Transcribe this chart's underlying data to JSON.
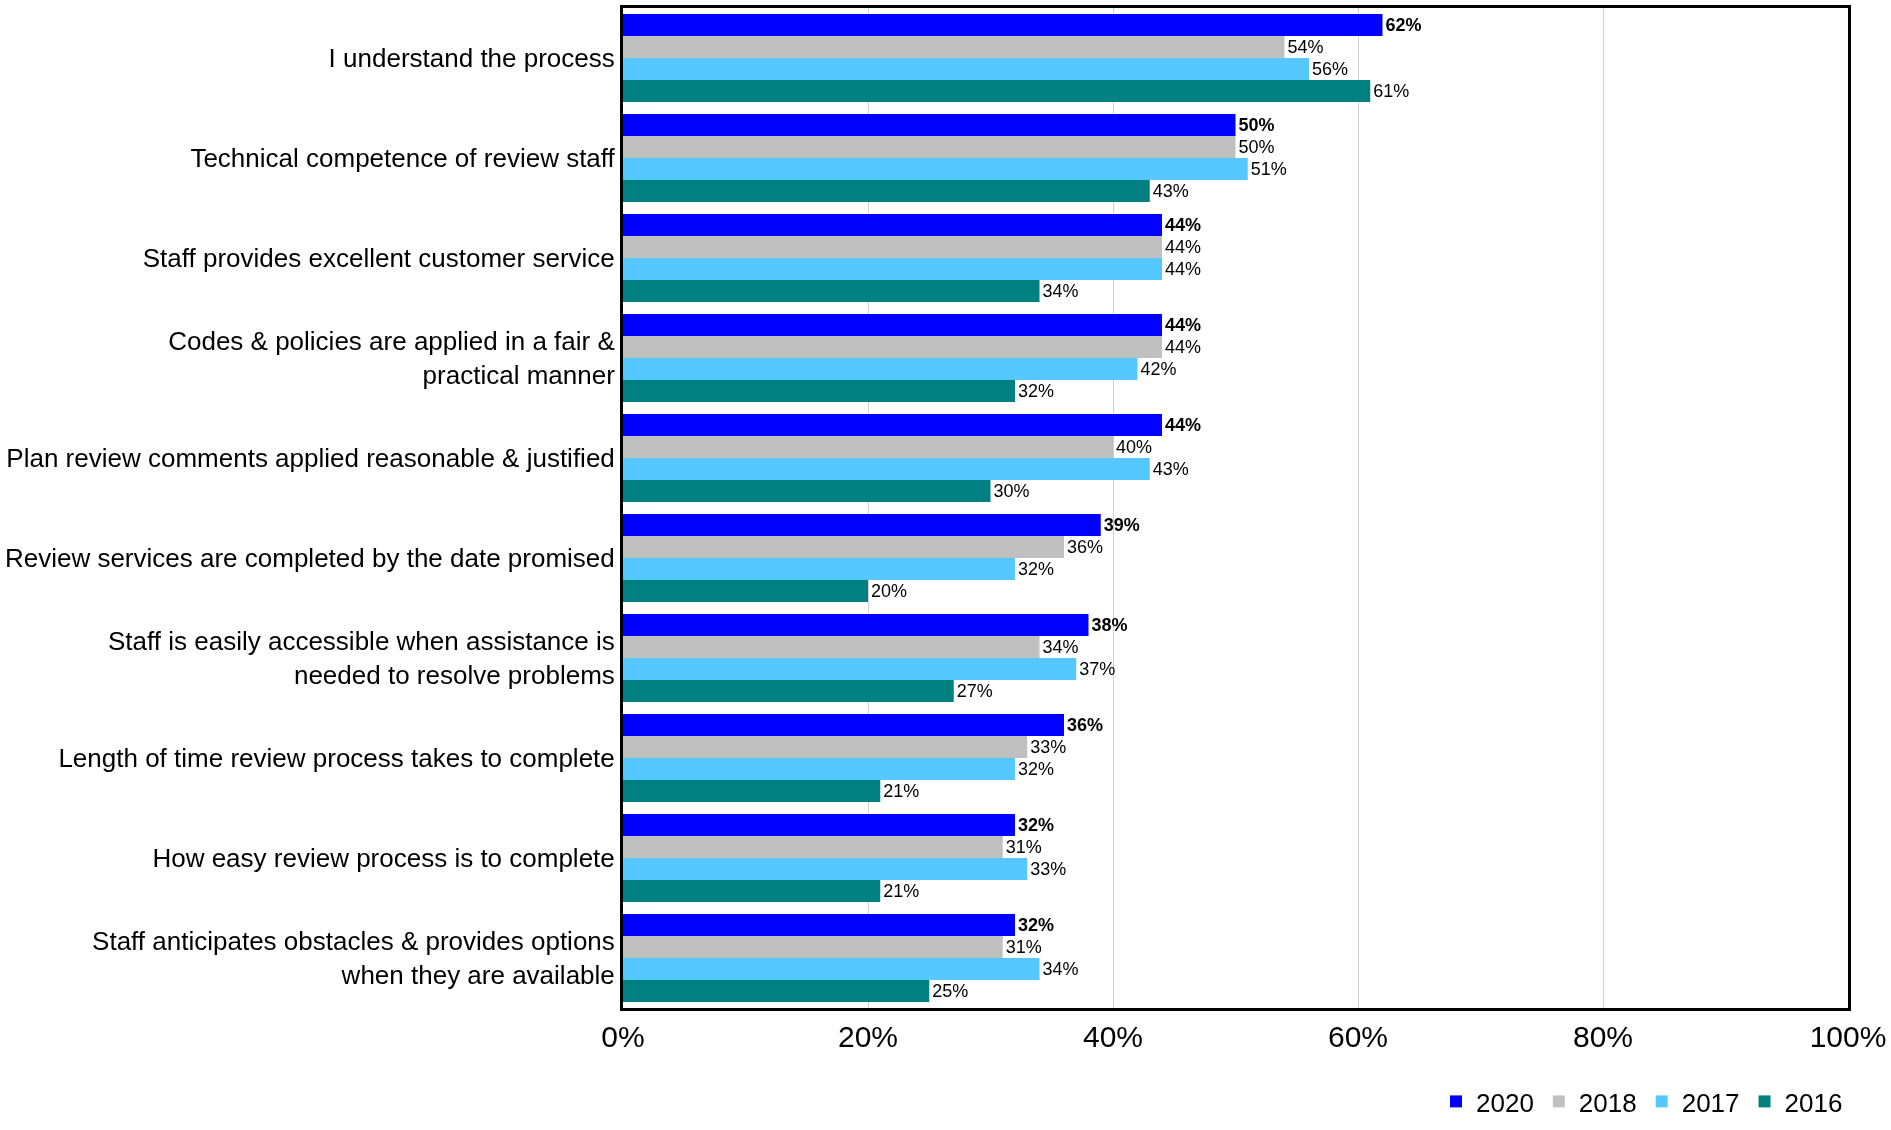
{
  "chart_data": {
    "type": "bar",
    "orientation": "horizontal",
    "categories": [
      "I understand the process",
      "Technical competence of review staff",
      "Staff provides excellent customer service",
      "Codes & policies are applied in a fair &\npractical manner",
      "Plan review comments applied reasonable & justified",
      "Review services are completed by the date promised",
      "Staff is easily accessible when assistance is\nneeded to resolve problems",
      "Length of time review process takes to complete",
      "How easy review process is to complete",
      "Staff anticipates obstacles & provides options\nwhen they are available"
    ],
    "series": [
      {
        "name": "2020",
        "color": "#0000ff",
        "values": [
          62,
          50,
          44,
          44,
          44,
          39,
          38,
          36,
          32,
          32
        ],
        "value_labels": [
          "62%",
          "50%",
          "44%",
          "44%",
          "44%",
          "39%",
          "38%",
          "36%",
          "32%",
          "32%"
        ]
      },
      {
        "name": "2018",
        "color": "#c0c0c0",
        "values": [
          54,
          50,
          44,
          44,
          40,
          36,
          34,
          33,
          31,
          31
        ],
        "value_labels": [
          "54%",
          "50%",
          "44%",
          "44%",
          "40%",
          "36%",
          "34%",
          "33%",
          "31%",
          "31%"
        ]
      },
      {
        "name": "2017",
        "color": "#55c8ff",
        "values": [
          56,
          51,
          44,
          42,
          43,
          32,
          37,
          32,
          33,
          34
        ],
        "value_labels": [
          "56%",
          "51%",
          "44%",
          "42%",
          "43%",
          "32%",
          "37%",
          "32%",
          "33%",
          "34%"
        ]
      },
      {
        "name": "2016",
        "color": "#008080",
        "values": [
          61,
          43,
          34,
          32,
          30,
          20,
          27,
          21,
          21,
          25
        ],
        "value_labels": [
          "61%",
          "43%",
          "34%",
          "32%",
          "30%",
          "20%",
          "27%",
          "21%",
          "21%",
          "25%"
        ]
      }
    ],
    "xlim": [
      0,
      100
    ],
    "xticks": [
      {
        "value": 0,
        "label": "0%"
      },
      {
        "value": 20,
        "label": "20%"
      },
      {
        "value": 40,
        "label": "40%"
      },
      {
        "value": 60,
        "label": "60%"
      },
      {
        "value": 80,
        "label": "80%"
      },
      {
        "value": 100,
        "label": "100%"
      }
    ],
    "grid": "x",
    "legend": "bottom right"
  }
}
